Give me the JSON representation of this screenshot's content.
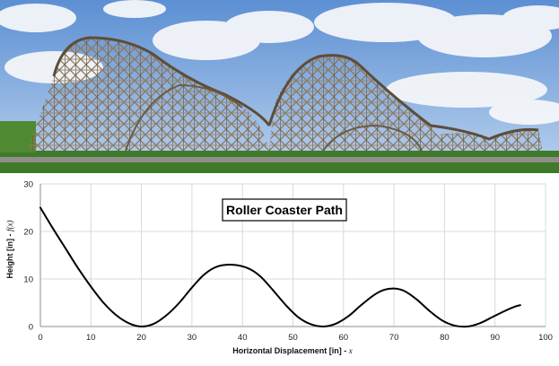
{
  "photo": {
    "subject": "wooden roller coaster",
    "colors": {
      "sky_top": "#5c8fd3",
      "sky_bottom": "#b9d2ee",
      "cloud": "#f4f6f9",
      "wood": "#8a7458",
      "wood_dark": "#5e4d39",
      "grass": "#3f7a2a",
      "path": "#8f8f8a"
    }
  },
  "chart_data": {
    "type": "line",
    "title": "Roller Coaster Path",
    "xlabel_text": "Horizontal Displacement [in]  -  ",
    "xlabel_var": "x",
    "ylabel_text": "Height  [in]  -  ",
    "ylabel_var": "f(x)",
    "xlim": [
      0,
      100
    ],
    "ylim": [
      0,
      30
    ],
    "xticks": [
      0,
      10,
      20,
      30,
      40,
      50,
      60,
      70,
      80,
      90,
      100
    ],
    "yticks": [
      0,
      10,
      20,
      30
    ],
    "grid": true,
    "legend": "none",
    "series": [
      {
        "color": "#000000",
        "x": [
          0,
          2.5,
          5,
          7.5,
          10,
          12.5,
          15,
          17.5,
          20,
          22.5,
          25,
          27.5,
          30,
          32.5,
          35,
          38,
          41,
          43.5,
          46,
          48.5,
          51,
          53.5,
          56,
          58.5,
          61,
          63.5,
          66,
          68,
          70,
          72,
          74.5,
          77,
          79.5,
          82,
          84.5,
          87,
          89.5,
          92,
          94,
          95
        ],
        "y": [
          25,
          20.6,
          16.4,
          12.2,
          8.4,
          5.0,
          2.4,
          0.7,
          0,
          0.6,
          2.4,
          5.0,
          8.2,
          11.0,
          12.6,
          13,
          12.3,
          10.6,
          7.7,
          4.6,
          2.0,
          0.5,
          0,
          0.6,
          2.2,
          4.5,
          6.6,
          7.7,
          8,
          7.5,
          5.7,
          3.3,
          1.3,
          0.2,
          0,
          0.7,
          2.0,
          3.3,
          4.2,
          4.5
        ]
      }
    ]
  }
}
